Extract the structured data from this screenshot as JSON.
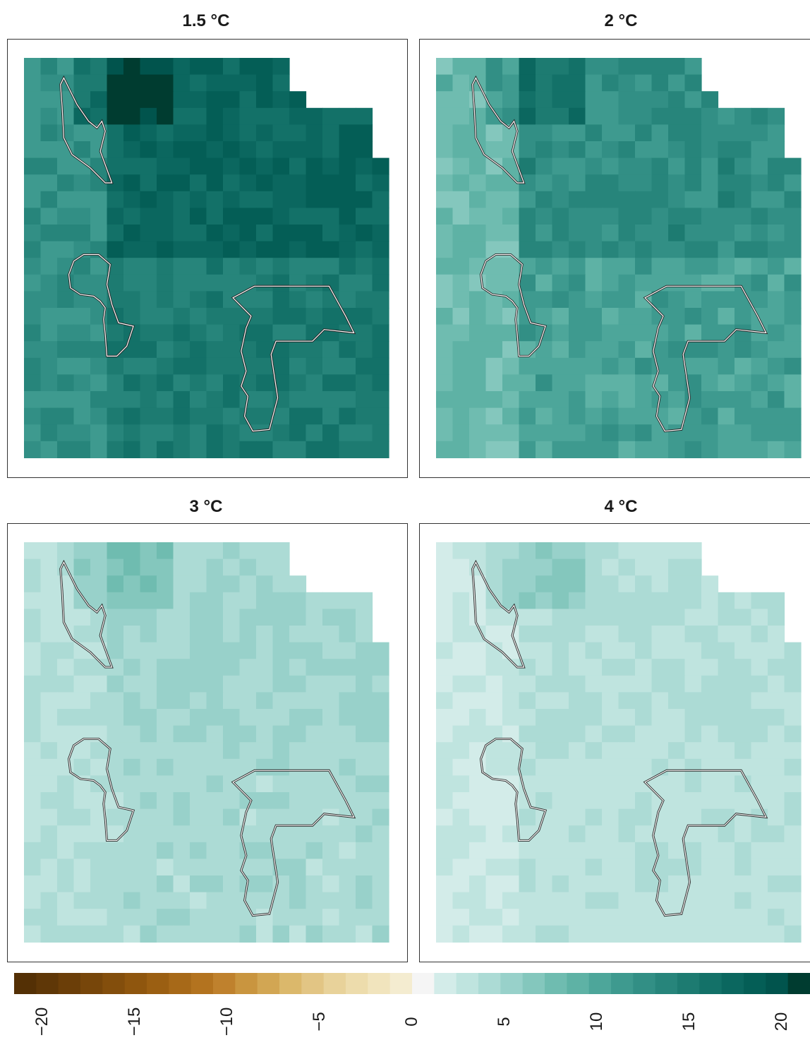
{
  "chart_data": {
    "type": "heatmap",
    "panels": [
      {
        "title": "1.5 °C",
        "base_value": 14,
        "regional_shift": 0
      },
      {
        "title": "2 °C",
        "base_value": 10,
        "regional_shift": -1
      },
      {
        "title": "3 °C",
        "base_value": 4,
        "regional_shift": -2
      },
      {
        "title": "4 °C",
        "base_value": 3,
        "regional_shift": -3
      }
    ],
    "colorbar": {
      "range": [
        -20,
        20
      ],
      "ticks": [
        "−20",
        "−15",
        "−10",
        "−5",
        "0",
        "5",
        "10",
        "15",
        "20"
      ],
      "colors": [
        "#543005",
        "#5f3707",
        "#6b3e08",
        "#77460a",
        "#834e0c",
        "#8f560e",
        "#9b5f12",
        "#a76918",
        "#b3731f",
        "#bf812d",
        "#c9953f",
        "#d2a653",
        "#dbb86b",
        "#e2c584",
        "#e8d29a",
        "#eddcac",
        "#f1e4bd",
        "#f4ecd0",
        "#f5f5f5",
        "#d3ece9",
        "#bfe4df",
        "#acdbd5",
        "#98d1ca",
        "#84c7bd",
        "#6fbcb0",
        "#5eb2a5",
        "#4da69a",
        "#3e9a8f",
        "#328f85",
        "#27857b",
        "#1d7b71",
        "#137168",
        "#0b675f",
        "#045e56",
        "#01544d",
        "#003c30"
      ]
    },
    "legend": "bottom"
  }
}
